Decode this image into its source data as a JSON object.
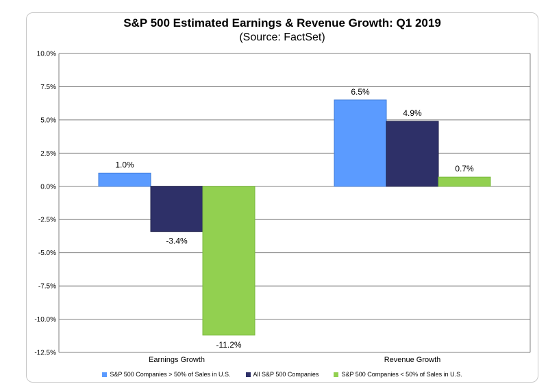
{
  "chart_data": {
    "type": "bar",
    "title": "S&P 500 Estimated Earnings & Revenue Growth: Q1 2019",
    "subtitle": "(Source: FactSet)",
    "categories": [
      "Earnings Growth",
      "Revenue Growth"
    ],
    "series": [
      {
        "name": "S&P 500 Companies > 50% of Sales in U.S.",
        "values": [
          1.0,
          6.5
        ],
        "labels": [
          "1.0%",
          "6.5%"
        ],
        "color": "#5b9bff"
      },
      {
        "name": "All S&P 500 Companies",
        "values": [
          -3.4,
          4.9
        ],
        "labels": [
          "-3.4%",
          "4.9%"
        ],
        "color": "#2e3068"
      },
      {
        "name": "S&P 500 Companies < 50% of Sales in U.S.",
        "values": [
          -11.2,
          0.7
        ],
        "labels": [
          "-11.2%",
          "0.7%"
        ],
        "color": "#92d050"
      }
    ],
    "ylim": [
      -12.5,
      10.0
    ],
    "yticks": [
      10.0,
      7.5,
      5.0,
      2.5,
      0.0,
      -2.5,
      -5.0,
      -7.5,
      -10.0,
      -12.5
    ],
    "ytick_labels": [
      "10.0%",
      "7.5%",
      "5.0%",
      "2.5%",
      "0.0%",
      "-2.5%",
      "-5.0%",
      "-7.5%",
      "-10.0%",
      "-12.5%"
    ],
    "grid": true,
    "legend_position": "bottom"
  }
}
